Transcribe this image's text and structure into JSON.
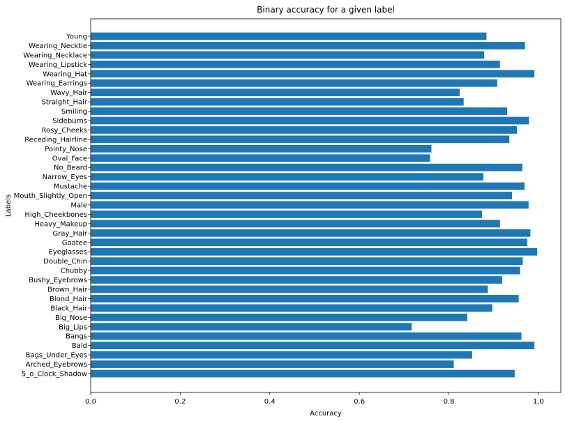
{
  "chart_data": {
    "type": "bar",
    "orientation": "horizontal",
    "title": "Binary accuracy for a given label",
    "xlabel": "Accuracy",
    "ylabel": "Labels",
    "xlim": [
      0,
      1.05
    ],
    "xticks": [
      "0.0",
      "0.2",
      "0.4",
      "0.6",
      "0.8",
      "1.0"
    ],
    "grid": false,
    "color": "#1f77b4",
    "categories": [
      "5_o_Clock_Shadow",
      "Arched_Eyebrows",
      "Bags_Under_Eyes",
      "Bald",
      "Bangs",
      "Big_Lips",
      "Big_Nose",
      "Black_Hair",
      "Blond_Hair",
      "Brown_Hair",
      "Bushy_Eyebrows",
      "Chubby",
      "Double_Chin",
      "Eyeglasses",
      "Goatee",
      "Gray_Hair",
      "Heavy_Makeup",
      "High_Cheekbones",
      "Male",
      "Mouth_Slightly_Open",
      "Mustache",
      "Narrow_Eyes",
      "No_Beard",
      "Oval_Face",
      "Pointy_Nose",
      "Receding_Hairline",
      "Rosy_Cheeks",
      "Sideburns",
      "Smiling",
      "Straight_Hair",
      "Wavy_Hair",
      "Wearing_Earrings",
      "Wearing_Hat",
      "Wearing_Lipstick",
      "Wearing_Necklace",
      "Wearing_Necktie",
      "Young"
    ],
    "values": [
      0.947,
      0.811,
      0.852,
      0.991,
      0.962,
      0.717,
      0.841,
      0.897,
      0.956,
      0.887,
      0.919,
      0.959,
      0.965,
      0.997,
      0.975,
      0.982,
      0.914,
      0.874,
      0.978,
      0.941,
      0.969,
      0.877,
      0.964,
      0.758,
      0.761,
      0.935,
      0.952,
      0.979,
      0.93,
      0.833,
      0.824,
      0.908,
      0.991,
      0.914,
      0.879,
      0.97,
      0.884
    ]
  }
}
